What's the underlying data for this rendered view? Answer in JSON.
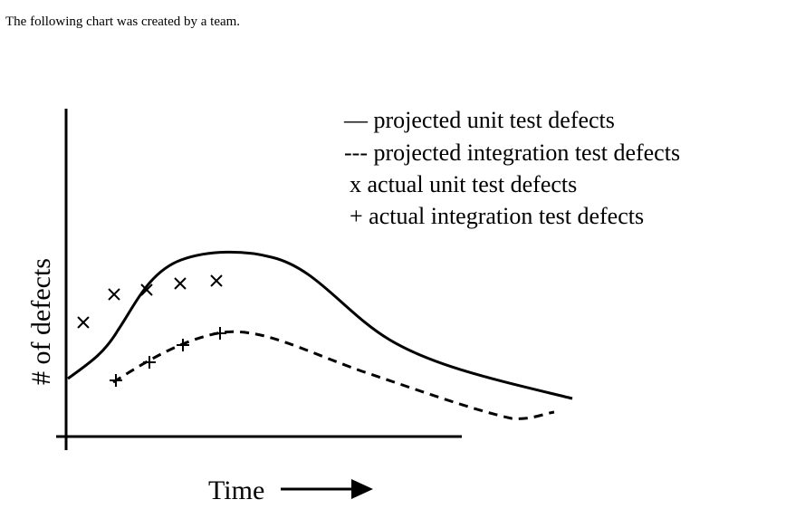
{
  "intro": "The following chart was created by a team.",
  "chart": {
    "legend": [
      "— projected unit test defects",
      "--- projected integration test defects",
      "x  actual unit test defects",
      "+  actual integration test defects"
    ],
    "y_label": "# of defects",
    "x_label": "Time"
  }
}
